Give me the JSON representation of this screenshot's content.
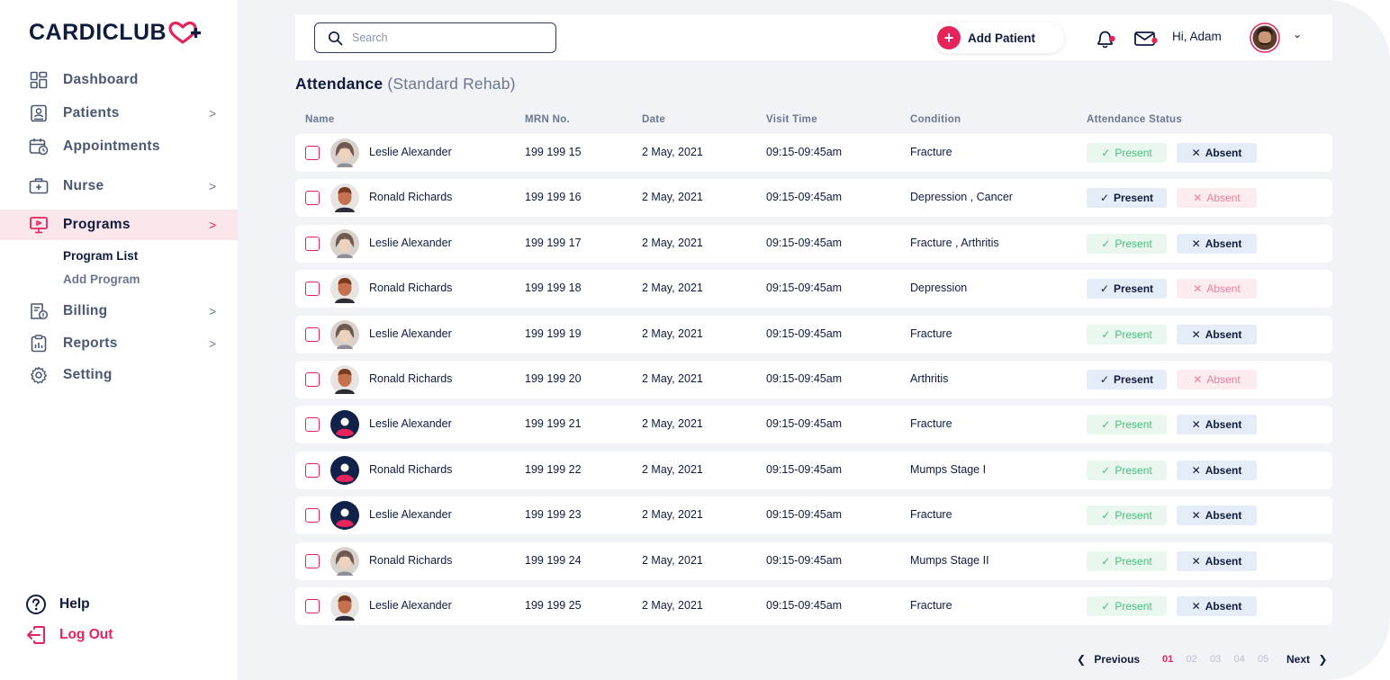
{
  "app": {
    "logo_text": "CARDICLUB"
  },
  "sidebar": {
    "items": [
      {
        "label": "Dashboard",
        "icon": "grid-icon",
        "chevron": ""
      },
      {
        "label": "Patients",
        "icon": "id-card-icon",
        "chevron": ">"
      },
      {
        "label": "Appointments",
        "icon": "calendar-clock-icon",
        "chevron": ""
      },
      {
        "label": "Nurse",
        "icon": "medical-kit-icon",
        "chevron": ">"
      },
      {
        "label": "Programs",
        "icon": "presentation-icon",
        "chevron": ">",
        "active": true
      },
      {
        "label": "Billing",
        "icon": "billing-icon",
        "chevron": ">"
      },
      {
        "label": "Reports",
        "icon": "report-icon",
        "chevron": ">"
      },
      {
        "label": "Setting",
        "icon": "gear-icon",
        "chevron": ""
      }
    ],
    "submenu": [
      {
        "label": "Program List",
        "current": true
      },
      {
        "label": "Add Program",
        "current": false
      }
    ],
    "help_label": "Help",
    "logout_label": "Log Out"
  },
  "topbar": {
    "search_placeholder": "Search",
    "add_patient_label": "Add Patient",
    "greeting": "Hi, Adam"
  },
  "page": {
    "title": "Attendance",
    "subtitle": "(Standard Rehab)"
  },
  "table": {
    "columns": [
      "Name",
      "MRN No.",
      "Date",
      "Visit Time",
      "Condition",
      "Attendance Status"
    ],
    "present_label": "Present",
    "absent_label": "Absent",
    "rows": [
      {
        "name": "Leslie Alexander",
        "mrn": "199 199 15",
        "date": "2 May, 2021",
        "time": "09:15-09:45am",
        "condition": "Fracture",
        "status": "absent",
        "avatar": "woman"
      },
      {
        "name": "Ronald Richards",
        "mrn": "199 199 16",
        "date": "2 May, 2021",
        "time": "09:15-09:45am",
        "condition": "Depression , Cancer",
        "status": "present",
        "avatar": "man"
      },
      {
        "name": "Leslie Alexander",
        "mrn": "199 199 17",
        "date": "2 May, 2021",
        "time": "09:15-09:45am",
        "condition": "Fracture , Arthritis",
        "status": "absent",
        "avatar": "woman"
      },
      {
        "name": "Ronald Richards",
        "mrn": "199 199 18",
        "date": "2 May, 2021",
        "time": "09:15-09:45am",
        "condition": "Depression",
        "status": "present",
        "avatar": "man"
      },
      {
        "name": "Leslie Alexander",
        "mrn": "199 199 19",
        "date": "2 May, 2021",
        "time": "09:15-09:45am",
        "condition": "Fracture",
        "status": "absent",
        "avatar": "woman"
      },
      {
        "name": "Ronald Richards",
        "mrn": "199 199 20",
        "date": "2 May, 2021",
        "time": "09:15-09:45am",
        "condition": "Arthritis",
        "status": "present",
        "avatar": "man"
      },
      {
        "name": "Leslie Alexander",
        "mrn": "199 199 21",
        "date": "2 May, 2021",
        "time": "09:15-09:45am",
        "condition": "Fracture",
        "status": "absent",
        "avatar": "placeholder"
      },
      {
        "name": "Ronald Richards",
        "mrn": "199 199 22",
        "date": "2 May, 2021",
        "time": "09:15-09:45am",
        "condition": "Mumps Stage I",
        "status": "absent",
        "avatar": "placeholder"
      },
      {
        "name": "Leslie Alexander",
        "mrn": "199 199 23",
        "date": "2 May, 2021",
        "time": "09:15-09:45am",
        "condition": "Fracture",
        "status": "absent",
        "avatar": "placeholder"
      },
      {
        "name": "Ronald Richards",
        "mrn": "199 199 24",
        "date": "2 May, 2021",
        "time": "09:15-09:45am",
        "condition": "Mumps Stage II",
        "status": "absent",
        "avatar": "woman"
      },
      {
        "name": "Leslie Alexander",
        "mrn": "199 199 25",
        "date": "2 May, 2021",
        "time": "09:15-09:45am",
        "condition": "Fracture",
        "status": "absent",
        "avatar": "man"
      }
    ]
  },
  "pagination": {
    "previous_label": "Previous",
    "next_label": "Next",
    "pages": [
      "01",
      "02",
      "03",
      "04",
      "05"
    ],
    "current_page": "01"
  },
  "colors": {
    "brand_pink": "#e5245b",
    "navy": "#0f1b3d",
    "present_green": "#3fc37a",
    "absent_pink": "#f07c9a"
  }
}
